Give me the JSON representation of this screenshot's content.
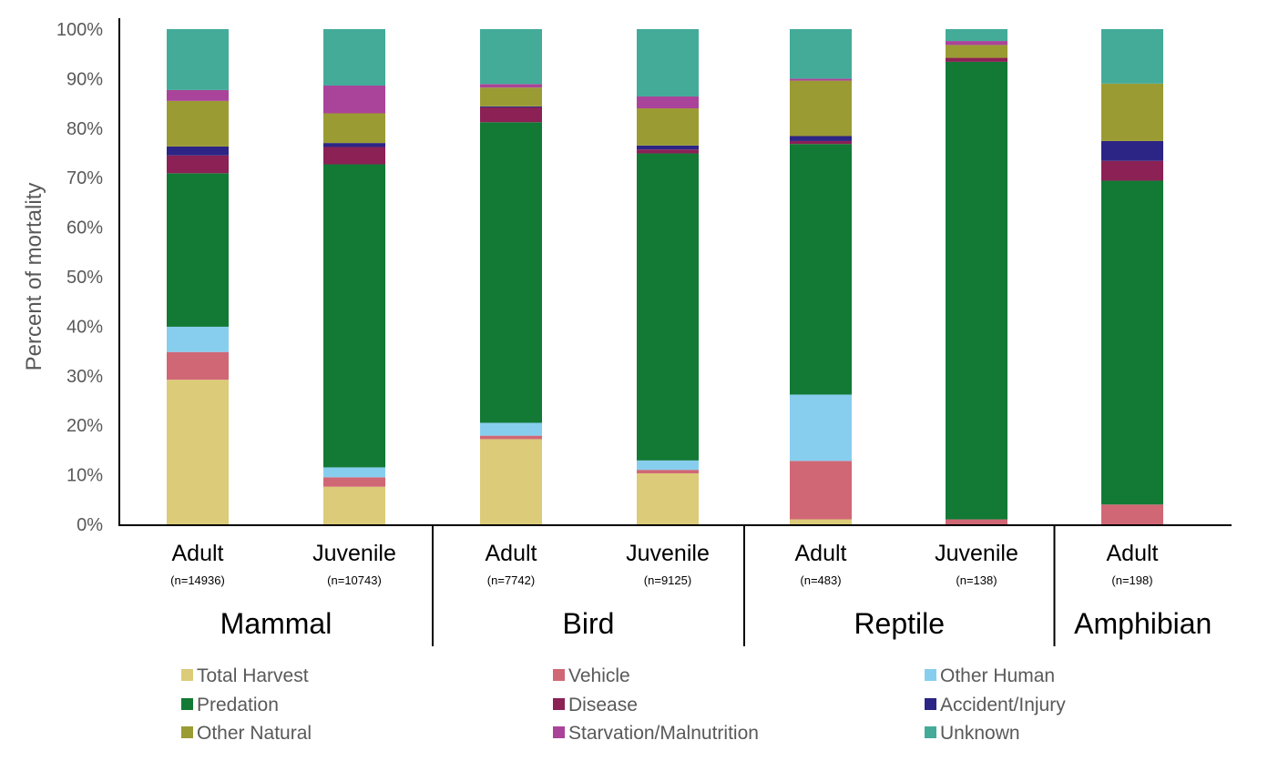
{
  "chart_data": {
    "type": "stacked-bar-100",
    "ylabel": "Percent of mortality",
    "ylim": [
      0,
      100
    ],
    "yticks": [
      "0%",
      "10%",
      "20%",
      "30%",
      "40%",
      "50%",
      "60%",
      "70%",
      "80%",
      "90%",
      "100%"
    ],
    "grid": false,
    "legend_position": "bottom",
    "bars": [
      {
        "label": "Adult",
        "n": "(n=14936)",
        "group": "Mammal"
      },
      {
        "label": "Juvenile",
        "n": "(n=10743)",
        "group": "Mammal"
      },
      {
        "label": "Adult",
        "n": "(n=7742)",
        "group": "Bird"
      },
      {
        "label": "Juvenile",
        "n": "(n=9125)",
        "group": "Bird"
      },
      {
        "label": "Adult",
        "n": "(n=483)",
        "group": "Reptile"
      },
      {
        "label": "Juvenile",
        "n": "(n=138)",
        "group": "Reptile"
      },
      {
        "label": "Adult",
        "n": "(n=198)",
        "group": "Amphibian"
      }
    ],
    "groups": [
      {
        "name": "Mammal",
        "bars": [
          0,
          1
        ]
      },
      {
        "name": "Bird",
        "bars": [
          2,
          3
        ]
      },
      {
        "name": "Reptile",
        "bars": [
          4,
          5
        ]
      },
      {
        "name": "Amphibian",
        "bars": [
          6
        ]
      }
    ],
    "series": [
      {
        "name": "Total Harvest",
        "color": "#dccb78",
        "values": [
          29.2,
          7.6,
          17.2,
          10.3,
          1.0,
          0.0,
          0.0
        ]
      },
      {
        "name": "Vehicle",
        "color": "#d06775",
        "values": [
          5.6,
          1.9,
          0.7,
          0.7,
          11.8,
          1.0,
          4.0
        ]
      },
      {
        "name": "Other Human",
        "color": "#87ceee",
        "values": [
          5.1,
          2.0,
          2.6,
          1.9,
          13.4,
          0.0,
          0.0
        ]
      },
      {
        "name": "Predation",
        "color": "#127a35",
        "values": [
          31.0,
          61.2,
          60.7,
          62.0,
          50.6,
          92.4,
          65.4
        ]
      },
      {
        "name": "Disease",
        "color": "#8b2155",
        "values": [
          3.6,
          3.5,
          3.0,
          0.8,
          0.6,
          0.8,
          4.0
        ]
      },
      {
        "name": "Accident/Injury",
        "color": "#2c2585",
        "values": [
          1.8,
          0.8,
          0.2,
          0.8,
          1.0,
          0.0,
          4.0
        ]
      },
      {
        "name": "Other Natural",
        "color": "#9b9b34",
        "values": [
          9.2,
          6.0,
          3.8,
          7.5,
          11.2,
          2.6,
          11.6
        ]
      },
      {
        "name": "Starvation/Malnutrition",
        "color": "#aa449a",
        "values": [
          2.2,
          5.6,
          0.7,
          2.4,
          0.4,
          0.8,
          0.0
        ]
      },
      {
        "name": "Unknown",
        "color": "#44ab99",
        "values": [
          12.3,
          11.4,
          11.1,
          13.6,
          10.0,
          2.4,
          11.0
        ]
      }
    ]
  }
}
